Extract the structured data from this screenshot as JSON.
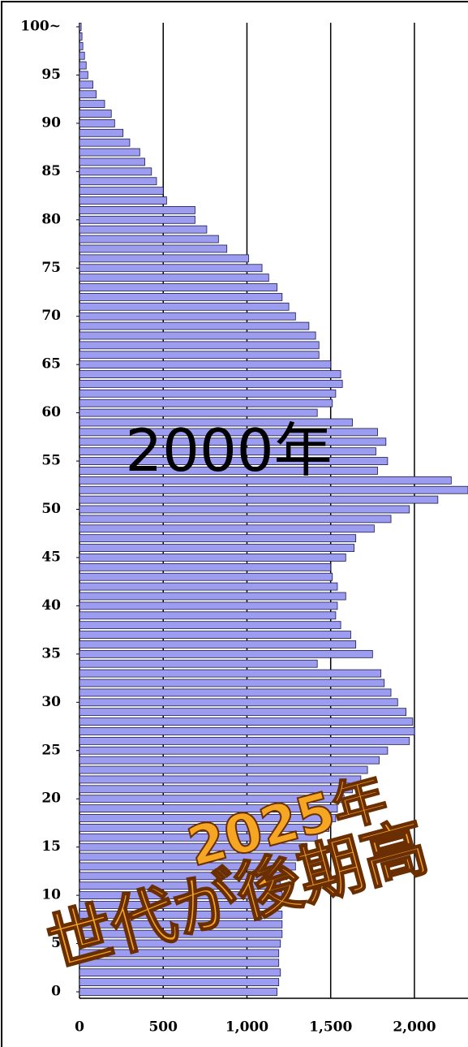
{
  "chart_data": {
    "type": "hbar",
    "categories": [
      0,
      null,
      null,
      null,
      null,
      5,
      null,
      null,
      null,
      null,
      10,
      null,
      null,
      null,
      null,
      15,
      null,
      null,
      null,
      null,
      20,
      null,
      null,
      null,
      null,
      25,
      null,
      null,
      null,
      null,
      30,
      null,
      null,
      null,
      null,
      35,
      null,
      null,
      null,
      null,
      40,
      null,
      null,
      null,
      null,
      45,
      null,
      null,
      null,
      null,
      50,
      null,
      null,
      null,
      null,
      55,
      null,
      null,
      null,
      null,
      60,
      null,
      null,
      null,
      null,
      65,
      null,
      null,
      null,
      null,
      70,
      null,
      null,
      null,
      null,
      75,
      null,
      null,
      null,
      null,
      80,
      null,
      null,
      null,
      null,
      85,
      null,
      null,
      null,
      null,
      90,
      null,
      null,
      null,
      null,
      95,
      null,
      null,
      null,
      null,
      "100~"
    ],
    "values": [
      1180,
      1190,
      1200,
      1190,
      1190,
      1200,
      1210,
      1210,
      1210,
      1200,
      1210,
      1200,
      1240,
      1290,
      1320,
      1360,
      1420,
      1490,
      1530,
      1540,
      1580,
      1630,
      1680,
      1720,
      1790,
      1840,
      1970,
      2000,
      1990,
      1950,
      1900,
      1860,
      1820,
      1800,
      1420,
      1750,
      1650,
      1620,
      1560,
      1530,
      1540,
      1590,
      1540,
      1510,
      1500,
      1590,
      1640,
      1650,
      1760,
      1860,
      1970,
      2140,
      2320,
      2220,
      1780,
      1840,
      1770,
      1830,
      1780,
      1630,
      1420,
      1510,
      1530,
      1570,
      1560,
      1500,
      1430,
      1430,
      1410,
      1370,
      1290,
      1250,
      1210,
      1180,
      1130,
      1090,
      1010,
      880,
      830,
      760,
      690,
      690,
      520,
      500,
      460,
      430,
      390,
      360,
      300,
      260,
      210,
      190,
      150,
      100,
      80,
      50,
      40,
      30,
      20,
      15,
      10
    ],
    "color": "#9c9cf0",
    "xlim": [
      0,
      2320
    ],
    "xticks": [
      0,
      {
        "value": 500,
        "label": "500"
      },
      {
        "value": 1000,
        "label": "1,000"
      },
      {
        "value": 1500,
        "label": "1,500"
      },
      {
        "value": 2000,
        "label": "2,000"
      }
    ],
    "grid": true,
    "annotations": [
      "2000年",
      "2025年",
      "世代が後期高"
    ]
  }
}
